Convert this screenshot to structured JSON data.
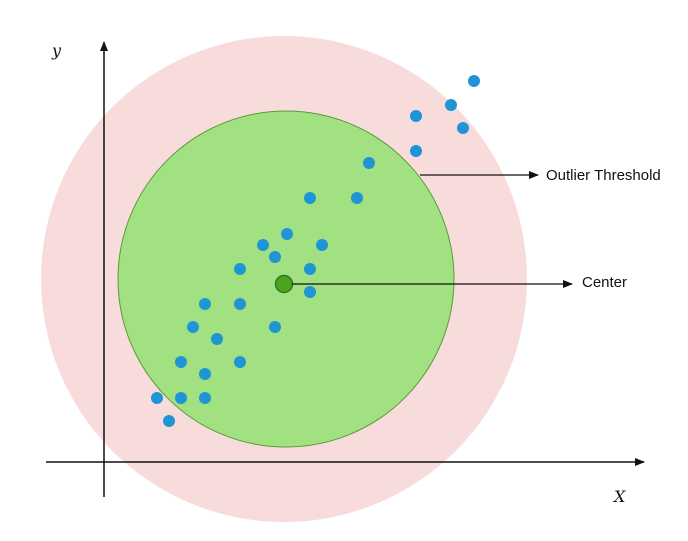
{
  "diagram": {
    "labels": {
      "y_axis": "y",
      "x_axis": "X",
      "outlier_threshold": "Outlier Threshold",
      "center": "Center"
    },
    "colors": {
      "outer_region_fill": "#f8dcdc",
      "inner_region_fill": "#a2e181",
      "inner_region_stroke": "#5a9a3a",
      "center_fill": "#4aa321",
      "center_stroke": "#2f7a16",
      "point_fill": "#1f95d6",
      "axis_color": "#111111"
    },
    "icons": {
      "data_point": "circle",
      "center_marker": "circle",
      "annotation_arrows": "arrow-right"
    }
  }
}
